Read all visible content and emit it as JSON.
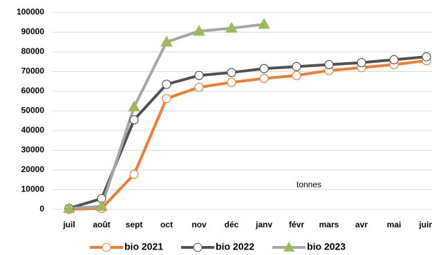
{
  "chart_data": {
    "type": "line",
    "categories": [
      "juil",
      "août",
      "sept",
      "oct",
      "nov",
      "déc",
      "janv",
      "févr",
      "mars",
      "avr",
      "mai",
      "juin"
    ],
    "series": [
      {
        "name": "bio 2021",
        "color": "#ed7d31",
        "marker": "circle",
        "marker_color": "#ffffff",
        "values": [
          0,
          500,
          17800,
          56300,
          62000,
          64500,
          66500,
          68000,
          70500,
          72000,
          73500,
          75500
        ]
      },
      {
        "name": "bio 2022",
        "color": "#505050",
        "marker": "circle",
        "marker_color": "#ffffff",
        "values": [
          500,
          5500,
          45500,
          63500,
          68000,
          69500,
          71500,
          72500,
          73500,
          74500,
          76000,
          77500
        ]
      },
      {
        "name": "bio 2023",
        "color": "#a5a5a5",
        "marker": "triangle",
        "marker_color": "#9bbb59",
        "values": [
          500,
          1500,
          52000,
          85000,
          90500,
          92000,
          94000,
          null,
          null,
          null,
          null,
          null
        ]
      }
    ],
    "ylim": [
      0,
      100000
    ],
    "yticks": [
      0,
      10000,
      20000,
      30000,
      40000,
      50000,
      60000,
      70000,
      80000,
      90000,
      100000
    ],
    "grid": true,
    "annotation": "tonnes",
    "legend": "bottom"
  }
}
